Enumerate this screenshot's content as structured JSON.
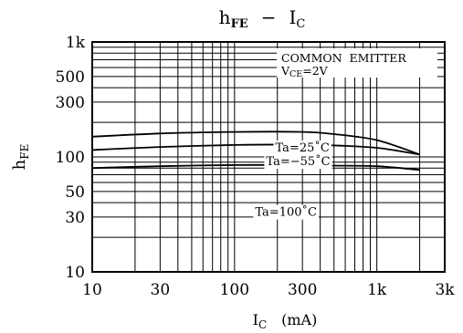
{
  "chart_data": {
    "type": "line",
    "title_main": "h",
    "title_sub": "FE",
    "title_dash": "−",
    "title_right_main": "I",
    "title_right_sub": "C",
    "xlabel_main": "I",
    "xlabel_sub": "C",
    "xlabel_unit": "(mA)",
    "ylabel_main": "h",
    "ylabel_sub": "FE",
    "x_scale": "log",
    "y_scale": "log",
    "xlim": [
      10,
      3000
    ],
    "ylim": [
      10,
      1000
    ],
    "x_ticks": [
      {
        "value": 10,
        "label": "10"
      },
      {
        "value": 30,
        "label": "30"
      },
      {
        "value": 100,
        "label": "100"
      },
      {
        "value": 300,
        "label": "300"
      },
      {
        "value": 1000,
        "label": "1k"
      },
      {
        "value": 3000,
        "label": "3k"
      }
    ],
    "y_ticks": [
      {
        "value": 10,
        "label": "10"
      },
      {
        "value": 30,
        "label": "30"
      },
      {
        "value": 50,
        "label": "50"
      },
      {
        "value": 100,
        "label": "100"
      },
      {
        "value": 300,
        "label": "300"
      },
      {
        "value": 500,
        "label": "500"
      },
      {
        "value": 1000,
        "label": "1k"
      }
    ],
    "grid": true,
    "annotation": {
      "line1": "COMMON  EMITTER",
      "line2_main": "V",
      "line2_sub": "CE",
      "line2_rest": "=2V"
    },
    "series": [
      {
        "name": "Ta=100˚C",
        "x": [
          10,
          30,
          100,
          300,
          500,
          1000,
          2000
        ],
        "y": [
          150,
          160,
          165,
          165,
          158,
          140,
          105
        ]
      },
      {
        "name": "Ta=25˚C",
        "x": [
          10,
          30,
          100,
          300,
          500,
          1000,
          2000
        ],
        "y": [
          115,
          122,
          127,
          128,
          126,
          120,
          105
        ]
      },
      {
        "name": "Ta=−55˚C",
        "x": [
          10,
          30,
          100,
          300,
          500,
          1000,
          2000
        ],
        "y": [
          80,
          83,
          85,
          85,
          84,
          83,
          77
        ]
      }
    ]
  }
}
